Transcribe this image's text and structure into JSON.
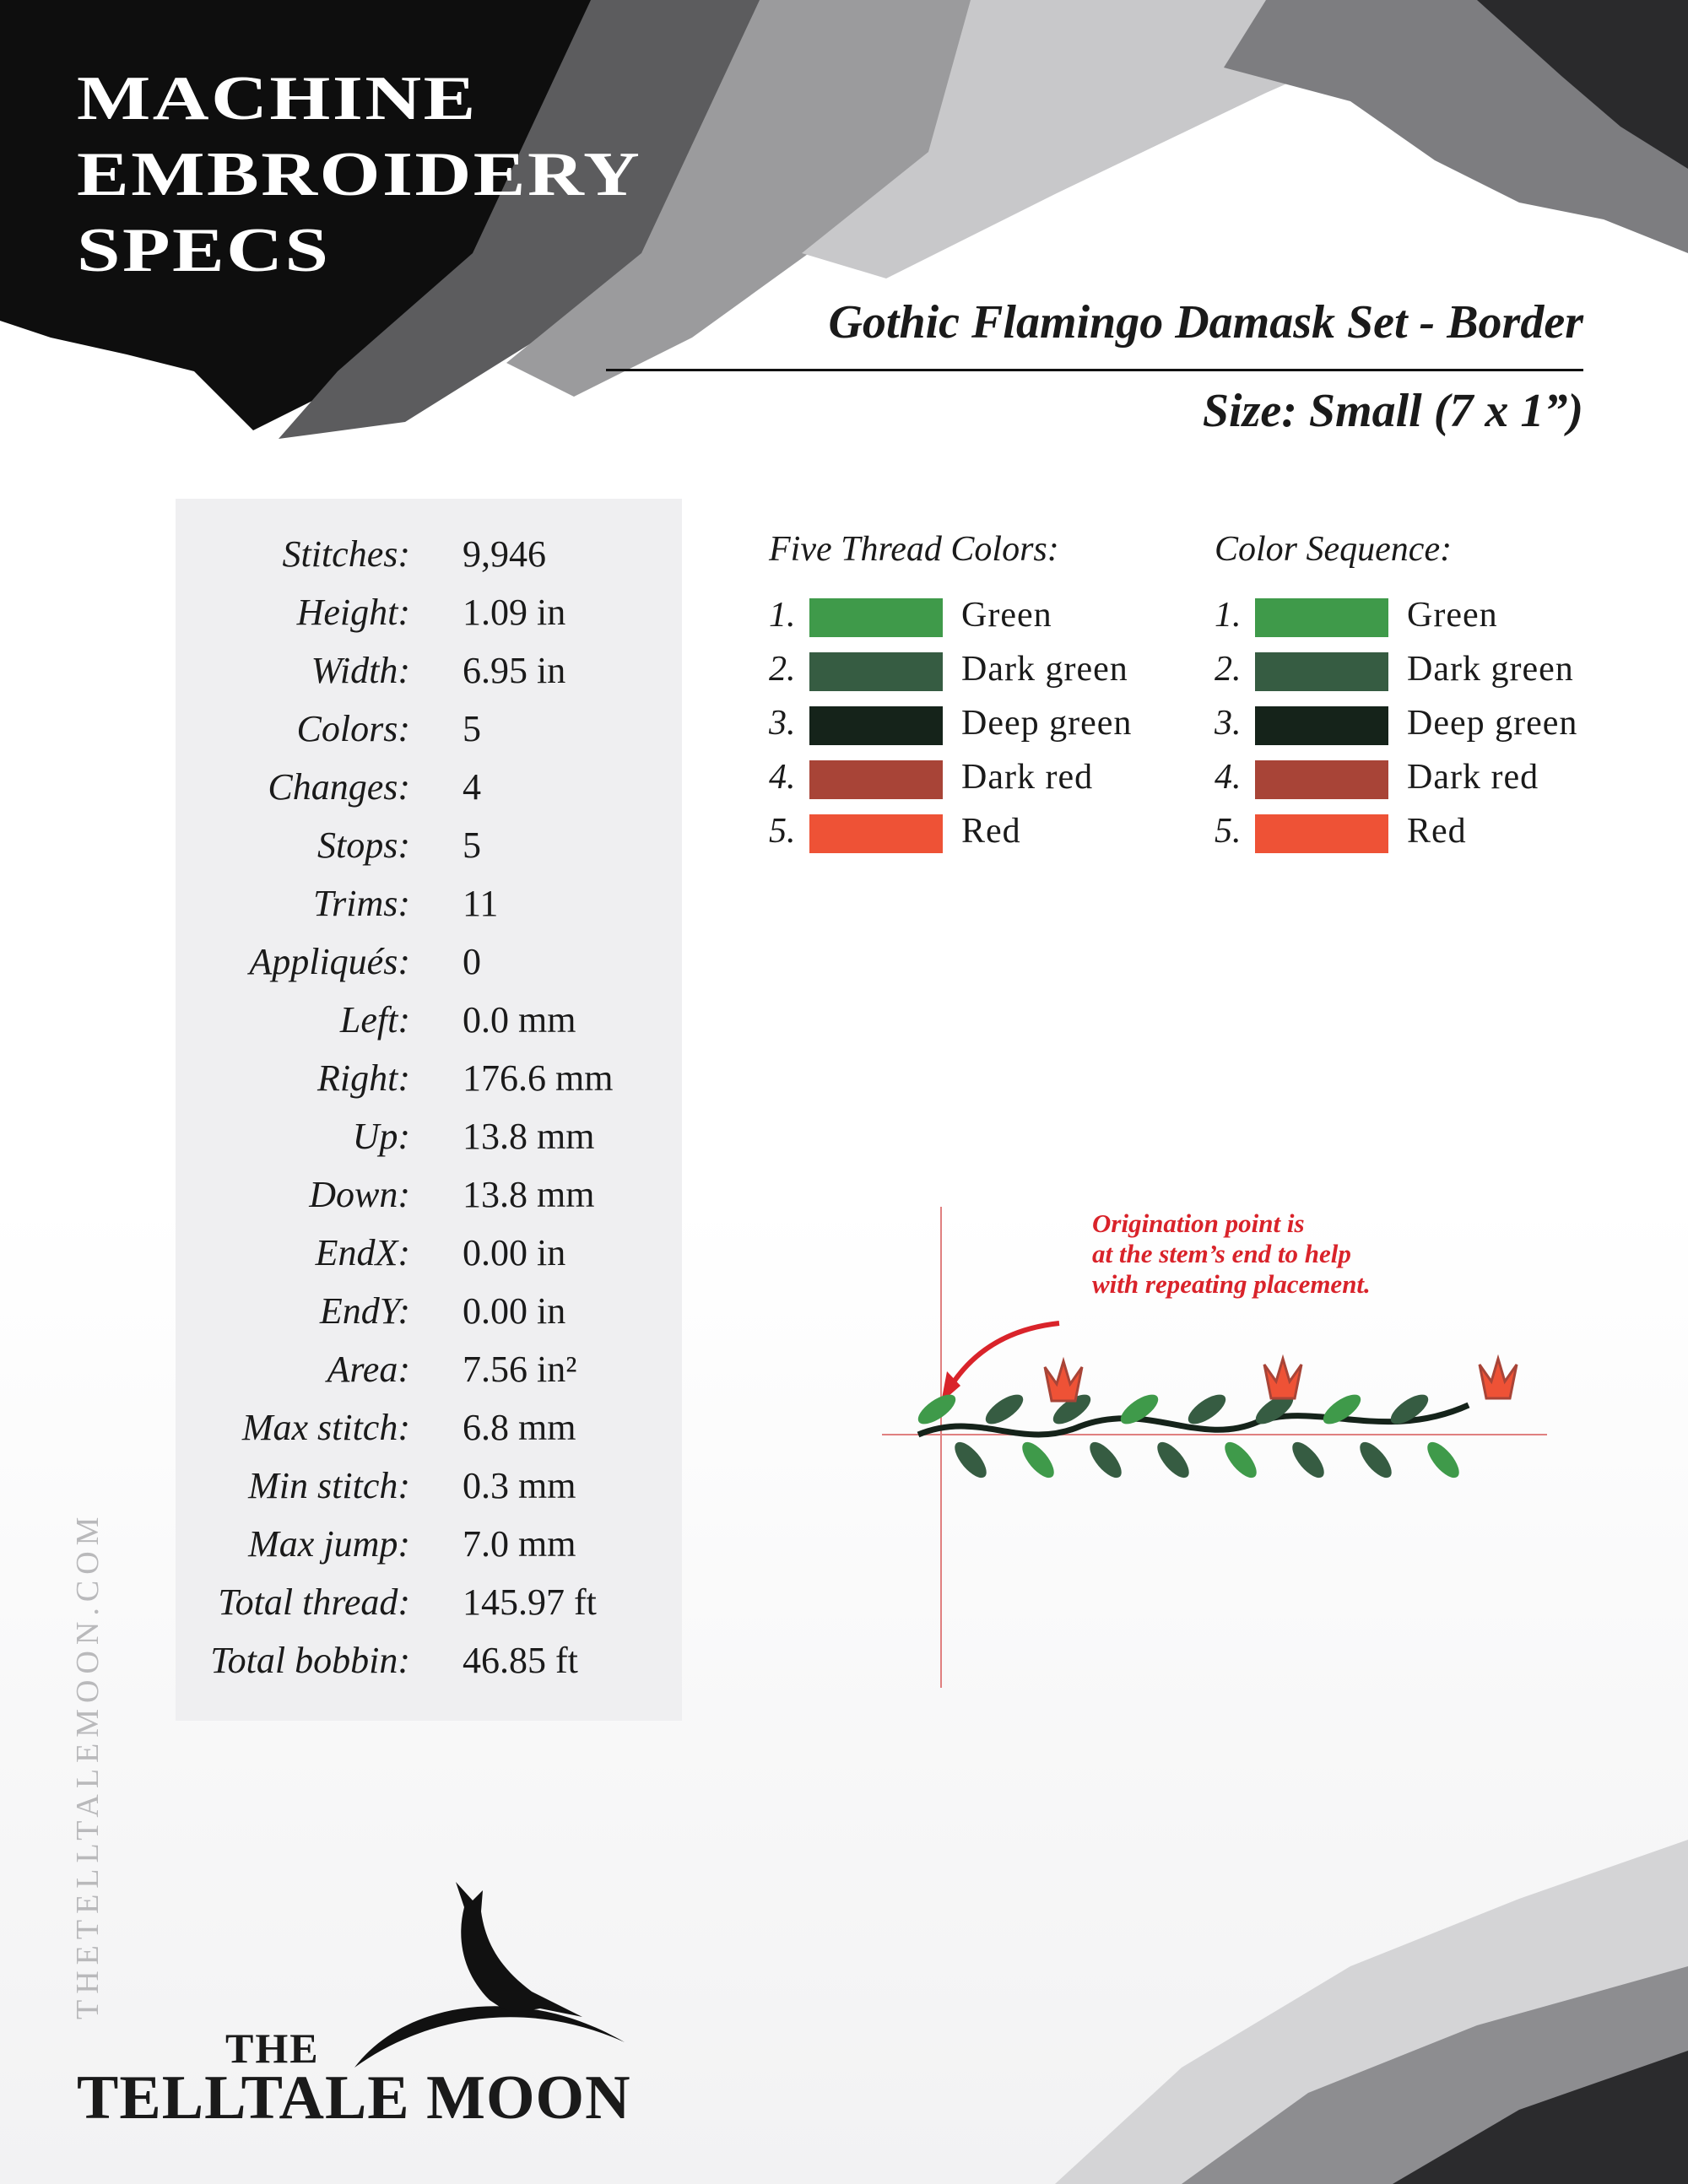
{
  "header": {
    "title_lines": [
      "MACHINE",
      "EMBROIDERY",
      "SPECS"
    ],
    "design_name": "Gothic Flamingo Damask Set - Border",
    "size": "Size: Small (7 x 1”)"
  },
  "specs": [
    {
      "label": "Stitches:",
      "value": "9,946"
    },
    {
      "label": "Height:",
      "value": "1.09 in"
    },
    {
      "label": "Width:",
      "value": "6.95 in"
    },
    {
      "label": "Colors:",
      "value": "5"
    },
    {
      "label": "Changes:",
      "value": "4"
    },
    {
      "label": "Stops:",
      "value": "5"
    },
    {
      "label": "Trims:",
      "value": "11"
    },
    {
      "label": "Appliqués:",
      "value": "0"
    },
    {
      "label": "Left:",
      "value": "0.0 mm"
    },
    {
      "label": "Right:",
      "value": "176.6 mm"
    },
    {
      "label": "Up:",
      "value": "13.8 mm"
    },
    {
      "label": "Down:",
      "value": "13.8 mm"
    },
    {
      "label": "EndX:",
      "value": "0.00 in"
    },
    {
      "label": "EndY:",
      "value": "0.00 in"
    },
    {
      "label": "Area:",
      "value": "7.56 in²"
    },
    {
      "label": "Max stitch:",
      "value": "6.8 mm"
    },
    {
      "label": "Min stitch:",
      "value": "0.3 mm"
    },
    {
      "label": "Max jump:",
      "value": "7.0 mm"
    },
    {
      "label": "Total thread:",
      "value": "145.97 ft"
    },
    {
      "label": "Total bobbin:",
      "value": "46.85 ft"
    }
  ],
  "thread_colors": {
    "header": "Five Thread Colors:",
    "items": [
      {
        "num": "1.",
        "name": "Green",
        "color": "#3f9a4a"
      },
      {
        "num": "2.",
        "name": "Dark green",
        "color": "#365c42"
      },
      {
        "num": "3.",
        "name": "Deep green",
        "color": "#15231a"
      },
      {
        "num": "4.",
        "name": "Dark red",
        "color": "#a84437"
      },
      {
        "num": "5.",
        "name": "Red",
        "color": "#ee5236"
      }
    ]
  },
  "color_sequence": {
    "header": "Color Sequence:",
    "items": [
      {
        "num": "1.",
        "name": "Green",
        "color": "#3f9a4a"
      },
      {
        "num": "2.",
        "name": "Dark green",
        "color": "#365c42"
      },
      {
        "num": "3.",
        "name": "Deep green",
        "color": "#15231a"
      },
      {
        "num": "4.",
        "name": "Dark red",
        "color": "#a84437"
      },
      {
        "num": "5.",
        "name": "Red",
        "color": "#ee5236"
      }
    ]
  },
  "annotation": {
    "lines": [
      "Origination point is",
      "at the stem’s end to help",
      "with repeating placement."
    ],
    "color": "#d9232a"
  },
  "footer": {
    "website": "THETELLTALEMOON.COM",
    "logo_small": "THE",
    "logo_main": "TELLTALE MOON"
  }
}
